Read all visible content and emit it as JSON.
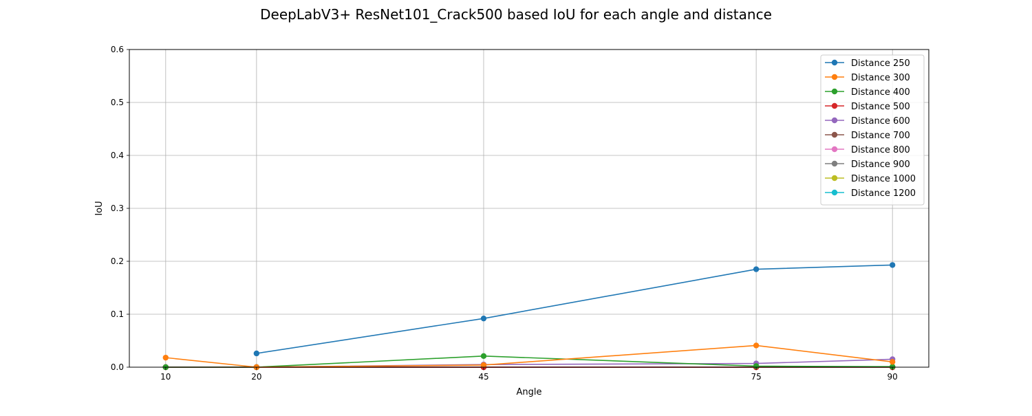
{
  "chart_data": {
    "type": "line",
    "title": "DeepLabV3+ ResNet101_Crack500 based IoU for each angle and distance",
    "xlabel": "Angle",
    "ylabel": "IoU",
    "x": [
      10,
      20,
      45,
      75,
      90
    ],
    "x_ticks": [
      "10",
      "20",
      "45",
      "75",
      "90"
    ],
    "xlim": [
      6,
      94
    ],
    "ylim": [
      0,
      0.6
    ],
    "y_ticks": [
      "0.0",
      "0.1",
      "0.2",
      "0.3",
      "0.4",
      "0.5",
      "0.6"
    ],
    "grid": true,
    "legend_position": "top-right",
    "series": [
      {
        "name": "Distance 250",
        "color": "#1f77b4",
        "values": [
          null,
          0.026,
          0.092,
          0.185,
          0.193
        ]
      },
      {
        "name": "Distance 300",
        "color": "#ff7f0e",
        "values": [
          0.018,
          0.0,
          0.004,
          0.041,
          0.01
        ]
      },
      {
        "name": "Distance 400",
        "color": "#2ca02c",
        "values": [
          0.0,
          0.0,
          0.021,
          0.002,
          0.001
        ]
      },
      {
        "name": "Distance 500",
        "color": "#d62728",
        "values": [
          0.0,
          0.0,
          0.0,
          0.0,
          0.0
        ]
      },
      {
        "name": "Distance 600",
        "color": "#9467bd",
        "values": [
          0.0,
          0.0,
          0.005,
          0.007,
          0.015
        ]
      },
      {
        "name": "Distance 700",
        "color": "#8c564b",
        "values": [
          0.0,
          0.0,
          0.0,
          0.0,
          0.0
        ]
      },
      {
        "name": "Distance 800",
        "color": "#e377c2",
        "values": [
          0.0,
          0.0,
          0.0,
          0.0,
          0.0
        ]
      },
      {
        "name": "Distance 900",
        "color": "#7f7f7f",
        "values": [
          0.0,
          0.0,
          0.0,
          0.0,
          0.0
        ]
      },
      {
        "name": "Distance 1000",
        "color": "#bcbd22",
        "values": [
          0.0,
          0.0,
          0.0,
          0.0,
          0.0
        ]
      },
      {
        "name": "Distance 1200",
        "color": "#17becf",
        "values": [
          0.0,
          0.0,
          0.0,
          0.0,
          0.0
        ]
      }
    ]
  }
}
